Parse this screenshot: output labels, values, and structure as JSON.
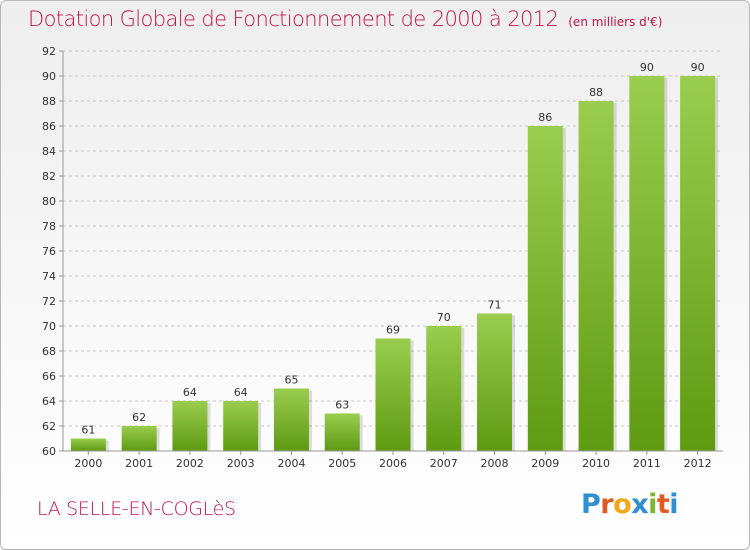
{
  "header": {
    "title": "Dotation Globale de Fonctionnement de 2000 à 2012",
    "unit": "(en milliers d'€)"
  },
  "footer": {
    "city": "LA SELLE-EN-COGLèS",
    "brand": {
      "text": "Proxiti",
      "letter_colors": [
        "#2f8fd0",
        "#e05a22",
        "#f0a818",
        "#2f8fd0",
        "#7ab82f",
        "#e05a22",
        "#2f8fd0"
      ]
    }
  },
  "colors": {
    "title": "#c0154a",
    "bar_light": "#9acd4e",
    "bar_dark": "#5e9a12",
    "grid": "#c8c8c8",
    "axis": "#999999",
    "text": "#333333"
  },
  "chart_data": {
    "type": "bar",
    "title": "Dotation Globale de Fonctionnement de 2000 à 2012",
    "subtitle": "(en milliers d'€)",
    "xlabel": "",
    "ylabel": "",
    "categories": [
      "2000",
      "2001",
      "2002",
      "2003",
      "2004",
      "2005",
      "2006",
      "2007",
      "2008",
      "2009",
      "2010",
      "2011",
      "2012"
    ],
    "values": [
      61,
      62,
      64,
      64,
      65,
      63,
      69,
      70,
      71,
      86,
      88,
      90,
      90
    ],
    "ylim": [
      60,
      92
    ],
    "yticks": [
      60,
      62,
      64,
      66,
      68,
      70,
      72,
      74,
      76,
      78,
      80,
      82,
      84,
      86,
      88,
      90,
      92
    ],
    "grid": true,
    "data_labels": true,
    "legend": "none"
  }
}
